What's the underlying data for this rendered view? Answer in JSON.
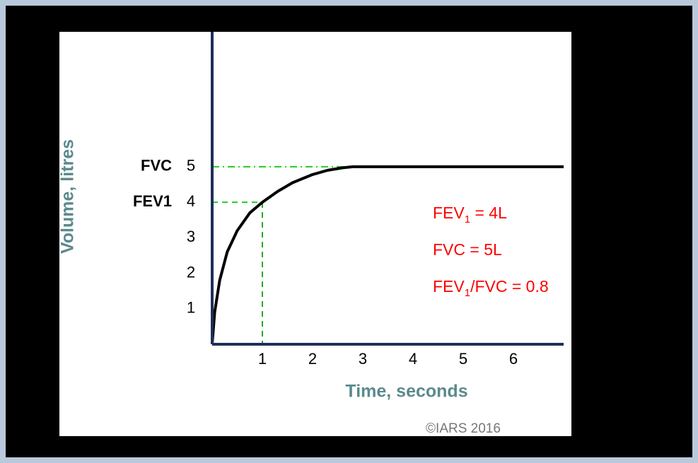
{
  "chart_data": {
    "type": "line",
    "x_label": "Time, seconds",
    "y_label": "Volume, litres",
    "x": [
      0,
      0.05,
      0.15,
      0.3,
      0.5,
      0.75,
      1,
      1.3,
      1.6,
      2,
      2.3,
      2.6,
      2.8,
      3,
      4,
      5,
      6,
      7
    ],
    "series": [
      {
        "name": "Volume",
        "color": "#000000",
        "values": [
          0,
          0.9,
          1.8,
          2.6,
          3.2,
          3.7,
          4,
          4.3,
          4.55,
          4.78,
          4.9,
          4.97,
          5,
          5,
          5,
          5,
          5,
          5
        ]
      }
    ],
    "xlim": [
      0,
      7
    ],
    "ylim": [
      0,
      8.8
    ],
    "xticks": [
      1,
      2,
      3,
      4,
      5,
      6
    ],
    "yticks": [
      1,
      2,
      3,
      4,
      5
    ],
    "markers": [
      {
        "label": "FVC",
        "x": 2.7,
        "y": 5
      },
      {
        "label": "FEV1",
        "x": 1,
        "y": 4
      }
    ],
    "annotations": [
      [
        "FEV",
        "1",
        " = 4L"
      ],
      [
        "FVC  = 5L"
      ],
      [
        "FEV",
        "1",
        "/FVC = 0.8"
      ]
    ],
    "annotation_color": "#ff0000",
    "credit": "©IARS 2016"
  }
}
